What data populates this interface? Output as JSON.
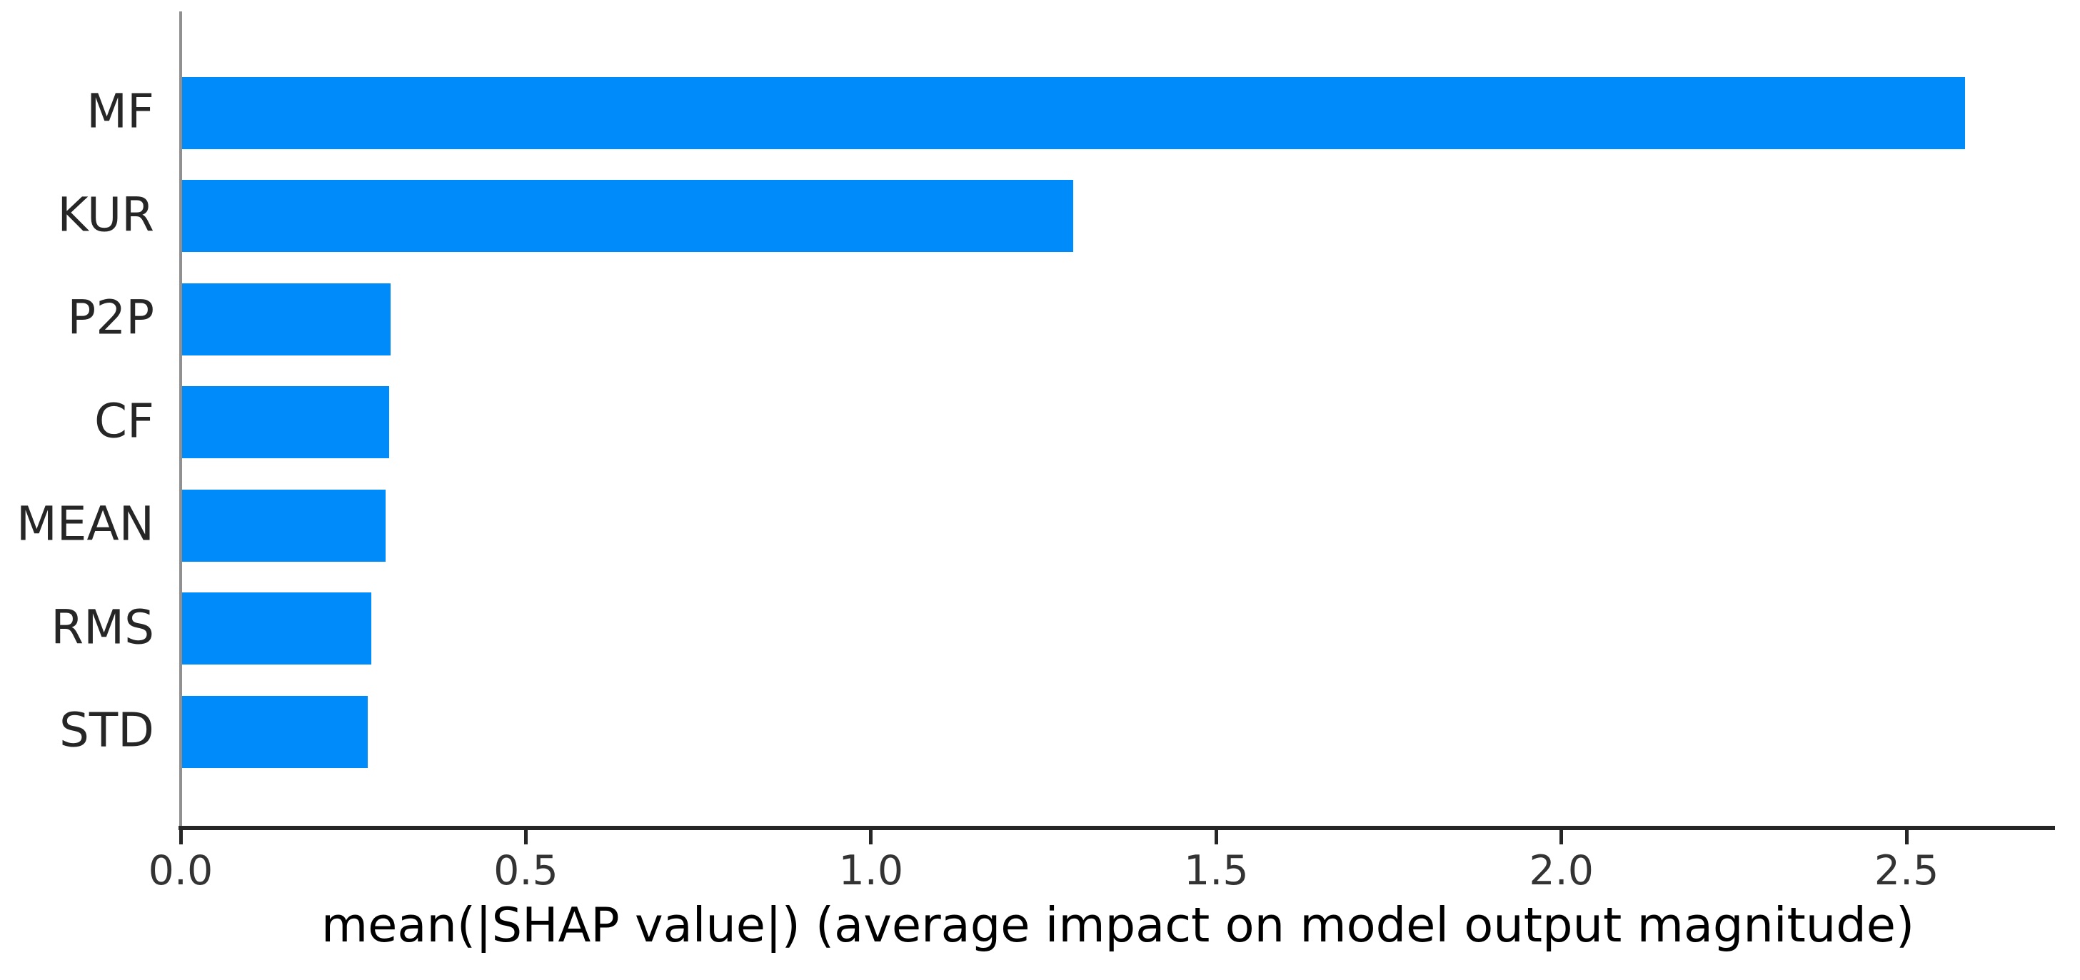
{
  "chart_data": {
    "type": "bar",
    "orientation": "horizontal",
    "title": "",
    "xlabel": "mean(|SHAP value|) (average impact on model output magnitude)",
    "ylabel": "",
    "categories": [
      "MF",
      "KUR",
      "P2P",
      "CF",
      "MEAN",
      "RMS",
      "STD"
    ],
    "values": [
      2.585,
      1.293,
      0.304,
      0.302,
      0.297,
      0.276,
      0.271
    ],
    "x_ticks": {
      "values": [
        0.0,
        0.5,
        1.0,
        1.5,
        2.0,
        2.5
      ],
      "labels": [
        "0.0",
        "0.5",
        "1.0",
        "1.5",
        "2.0",
        "2.5"
      ]
    },
    "xlim": [
      0,
      2.715
    ],
    "grid": false,
    "legend": null,
    "bar_color": "#008bfb",
    "background_color": "#ffffff",
    "left_spine_color": "#909090",
    "bottom_spine_color": "#262626",
    "tick_label_color": "#333333",
    "category_label_color": "#262626",
    "xlabel_color": "#000000"
  }
}
